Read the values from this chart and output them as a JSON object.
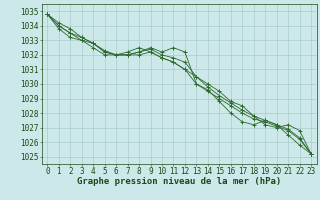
{
  "x": [
    0,
    1,
    2,
    3,
    4,
    5,
    6,
    7,
    8,
    9,
    10,
    11,
    12,
    13,
    14,
    15,
    16,
    17,
    18,
    19,
    20,
    21,
    22,
    23
  ],
  "series1": [
    1034.8,
    1034.2,
    1033.8,
    1033.2,
    1032.8,
    1032.2,
    1032.0,
    1032.0,
    1032.2,
    1032.5,
    1032.2,
    1032.5,
    1032.2,
    1030.0,
    1029.6,
    1028.8,
    1028.0,
    1027.4,
    1027.2,
    1027.5,
    1027.2,
    1026.5,
    1025.8,
    1025.2
  ],
  "series2": [
    1034.8,
    1033.8,
    1033.2,
    1033.0,
    1032.8,
    1032.2,
    1032.0,
    1032.0,
    1032.0,
    1032.2,
    1031.8,
    1031.5,
    1031.0,
    1030.0,
    1029.5,
    1029.0,
    1028.5,
    1028.0,
    1027.6,
    1027.4,
    1027.1,
    1026.8,
    1026.2,
    1025.2
  ],
  "series3": [
    1034.8,
    1034.0,
    1033.5,
    1033.2,
    1032.8,
    1032.3,
    1032.0,
    1032.0,
    1032.2,
    1032.4,
    1032.0,
    1031.8,
    1031.5,
    1030.5,
    1029.8,
    1029.2,
    1028.7,
    1028.2,
    1027.8,
    1027.5,
    1027.2,
    1026.9,
    1026.3,
    1025.2
  ],
  "series4": [
    1034.8,
    1034.0,
    1033.5,
    1033.0,
    1032.5,
    1032.0,
    1032.0,
    1032.2,
    1032.5,
    1032.2,
    1031.8,
    1031.5,
    1031.0,
    1030.5,
    1030.0,
    1029.5,
    1028.8,
    1028.5,
    1027.8,
    1027.2,
    1027.0,
    1027.2,
    1026.8,
    1025.2
  ],
  "line_color": "#2d6a2d",
  "bg_color": "#cce8e8",
  "grid_color": "#aacccc",
  "xlabel": "Graphe pression niveau de la mer (hPa)",
  "ylim": [
    1024.5,
    1035.5
  ],
  "yticks": [
    1025,
    1026,
    1027,
    1028,
    1029,
    1030,
    1031,
    1032,
    1033,
    1034,
    1035
  ],
  "xticks": [
    0,
    1,
    2,
    3,
    4,
    5,
    6,
    7,
    8,
    9,
    10,
    11,
    12,
    13,
    14,
    15,
    16,
    17,
    18,
    19,
    20,
    21,
    22,
    23
  ],
  "xlabel_fontsize": 6.5,
  "tick_fontsize": 5.5,
  "label_color": "#1a4a1a"
}
